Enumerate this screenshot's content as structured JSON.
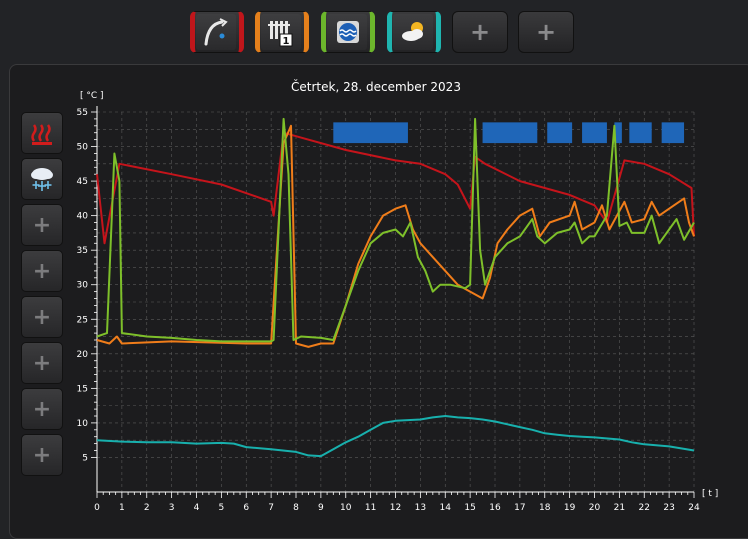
{
  "toolbar": {
    "buttons": [
      {
        "id": "water-tap",
        "icon": "water-tap-icon",
        "accent": "#c0161b"
      },
      {
        "id": "heating-circuit-1",
        "icon": "radiator-1-icon",
        "accent": "#e5801c"
      },
      {
        "id": "pool",
        "icon": "pool-water-icon",
        "accent": "#6cb62c"
      },
      {
        "id": "weather",
        "icon": "sun-cloud-icon",
        "accent": "#1fb5b0"
      },
      {
        "id": "add-1",
        "icon": "plus-icon",
        "label": "+"
      },
      {
        "id": "add-2",
        "icon": "plus-icon",
        "label": "+"
      }
    ]
  },
  "side_buttons": [
    {
      "id": "heating-mode",
      "icon": "heat-waves-icon"
    },
    {
      "id": "cooling-mode",
      "icon": "snowflake-icon"
    },
    {
      "id": "add-1",
      "icon": "plus-icon",
      "label": "+"
    },
    {
      "id": "add-2",
      "icon": "plus-icon",
      "label": "+"
    },
    {
      "id": "add-3",
      "icon": "plus-icon",
      "label": "+"
    },
    {
      "id": "add-4",
      "icon": "plus-icon",
      "label": "+"
    },
    {
      "id": "add-5",
      "icon": "plus-icon",
      "label": "+"
    },
    {
      "id": "add-6",
      "icon": "plus-icon",
      "label": "+"
    }
  ],
  "chart_data": {
    "type": "line",
    "title": "Četrtek, 28. december 2023",
    "ylabel": "[ °C ]",
    "xlabel": "[ t ]",
    "xlim": [
      0,
      24
    ],
    "ylim": [
      5,
      55
    ],
    "x_ticks": [
      0,
      1,
      2,
      3,
      4,
      5,
      6,
      7,
      8,
      9,
      10,
      11,
      12,
      13,
      14,
      15,
      16,
      17,
      18,
      19,
      20,
      21,
      22,
      23,
      24
    ],
    "y_ticks": [
      5,
      10,
      15,
      20,
      25,
      30,
      35,
      40,
      45,
      50,
      55
    ],
    "grid": true,
    "series": [
      {
        "color": "#c5141b",
        "points": [
          [
            0,
            46
          ],
          [
            0.3,
            36
          ],
          [
            0.9,
            47.5
          ],
          [
            3,
            46
          ],
          [
            5,
            44.5
          ],
          [
            7,
            42
          ],
          [
            7.1,
            40
          ],
          [
            7.5,
            52
          ],
          [
            8,
            51.5
          ],
          [
            10,
            49.5
          ],
          [
            12,
            48
          ],
          [
            13,
            47.5
          ],
          [
            14,
            46
          ],
          [
            14.5,
            44.5
          ],
          [
            15,
            41
          ],
          [
            15.2,
            48.5
          ],
          [
            15.6,
            47.5
          ],
          [
            17,
            45
          ],
          [
            18,
            44
          ],
          [
            19,
            43
          ],
          [
            20,
            41.5
          ],
          [
            20.5,
            39
          ],
          [
            21.2,
            48
          ],
          [
            22,
            47.5
          ],
          [
            23,
            46
          ],
          [
            23.9,
            44
          ],
          [
            24,
            37
          ]
        ]
      },
      {
        "color": "#f07d1a",
        "points": [
          [
            0,
            22
          ],
          [
            0.5,
            21.5
          ],
          [
            0.8,
            22.5
          ],
          [
            1,
            21.5
          ],
          [
            3,
            21.8
          ],
          [
            6,
            21.5
          ],
          [
            7,
            21.5
          ],
          [
            7.5,
            50.5
          ],
          [
            7.8,
            53
          ],
          [
            8,
            21.5
          ],
          [
            8.5,
            21
          ],
          [
            9,
            21.5
          ],
          [
            9.5,
            21.5
          ],
          [
            10,
            27
          ],
          [
            10.5,
            33
          ],
          [
            11,
            37
          ],
          [
            11.5,
            40
          ],
          [
            12,
            41
          ],
          [
            12.4,
            41.5
          ],
          [
            12.7,
            38
          ],
          [
            13,
            36
          ],
          [
            13.5,
            34
          ],
          [
            14,
            32
          ],
          [
            14.5,
            30
          ],
          [
            15,
            29
          ],
          [
            15.5,
            28
          ],
          [
            15.8,
            31
          ],
          [
            16.1,
            36
          ],
          [
            16.5,
            38
          ],
          [
            17,
            40
          ],
          [
            17.5,
            41
          ],
          [
            17.8,
            37
          ],
          [
            18.2,
            39
          ],
          [
            19,
            40
          ],
          [
            19.2,
            42
          ],
          [
            19.5,
            38
          ],
          [
            20,
            39
          ],
          [
            20.3,
            41.5
          ],
          [
            20.6,
            38
          ],
          [
            21.2,
            42
          ],
          [
            21.5,
            39
          ],
          [
            22,
            39.5
          ],
          [
            22.3,
            42
          ],
          [
            22.6,
            40
          ],
          [
            23,
            41
          ],
          [
            23.6,
            42.5
          ],
          [
            23.8,
            39
          ],
          [
            24,
            37
          ]
        ]
      },
      {
        "color": "#7ec02a",
        "points": [
          [
            0,
            22.5
          ],
          [
            0.4,
            23
          ],
          [
            0.7,
            49
          ],
          [
            0.9,
            45
          ],
          [
            1,
            23
          ],
          [
            2,
            22.5
          ],
          [
            3,
            22.3
          ],
          [
            4,
            22
          ],
          [
            5,
            21.8
          ],
          [
            6,
            21.8
          ],
          [
            7,
            21.8
          ],
          [
            7.1,
            22
          ],
          [
            7.5,
            54
          ],
          [
            7.7,
            46
          ],
          [
            7.9,
            22
          ],
          [
            8.2,
            22.5
          ],
          [
            9,
            22.3
          ],
          [
            9.5,
            22
          ],
          [
            10,
            27
          ],
          [
            10.5,
            32
          ],
          [
            11,
            36
          ],
          [
            11.5,
            37.5
          ],
          [
            12,
            38
          ],
          [
            12.3,
            37
          ],
          [
            12.6,
            39
          ],
          [
            12.9,
            34
          ],
          [
            13.2,
            32
          ],
          [
            13.5,
            29
          ],
          [
            13.8,
            30
          ],
          [
            14.2,
            30
          ],
          [
            14.8,
            29.5
          ],
          [
            15,
            30
          ],
          [
            15.2,
            54
          ],
          [
            15.4,
            35
          ],
          [
            15.6,
            30
          ],
          [
            16,
            34
          ],
          [
            16.5,
            36
          ],
          [
            17,
            37
          ],
          [
            17.5,
            39.5
          ],
          [
            17.7,
            37
          ],
          [
            18,
            36
          ],
          [
            18.5,
            37.5
          ],
          [
            19,
            38
          ],
          [
            19.2,
            39
          ],
          [
            19.5,
            36
          ],
          [
            19.8,
            37
          ],
          [
            20,
            37
          ],
          [
            20.5,
            40
          ],
          [
            20.8,
            53
          ],
          [
            21,
            38.5
          ],
          [
            21.3,
            39
          ],
          [
            21.5,
            37.5
          ],
          [
            22,
            37.5
          ],
          [
            22.3,
            40
          ],
          [
            22.6,
            36
          ],
          [
            23,
            38
          ],
          [
            23.3,
            39.5
          ],
          [
            23.6,
            36.5
          ],
          [
            24,
            39
          ]
        ]
      },
      {
        "color": "#18b0ad",
        "points": [
          [
            0,
            7.5
          ],
          [
            1,
            7.3
          ],
          [
            2,
            7.2
          ],
          [
            3,
            7.2
          ],
          [
            4,
            7.0
          ],
          [
            5,
            7.1
          ],
          [
            5.5,
            7.0
          ],
          [
            6,
            6.5
          ],
          [
            7,
            6.2
          ],
          [
            8,
            5.8
          ],
          [
            8.5,
            5.3
          ],
          [
            9,
            5.2
          ],
          [
            9.5,
            6.2
          ],
          [
            10,
            7.2
          ],
          [
            10.5,
            8
          ],
          [
            11,
            9
          ],
          [
            11.5,
            10
          ],
          [
            12,
            10.3
          ],
          [
            12.5,
            10.4
          ],
          [
            13,
            10.5
          ],
          [
            13.5,
            10.8
          ],
          [
            14,
            11
          ],
          [
            14.5,
            10.8
          ],
          [
            15,
            10.7
          ],
          [
            15.5,
            10.5
          ],
          [
            16,
            10.2
          ],
          [
            16.5,
            9.8
          ],
          [
            17,
            9.4
          ],
          [
            17.5,
            9.0
          ],
          [
            18,
            8.5
          ],
          [
            18.5,
            8.3
          ],
          [
            19,
            8.1
          ],
          [
            19.5,
            8.0
          ],
          [
            20,
            7.9
          ],
          [
            21,
            7.6
          ],
          [
            21.5,
            7.2
          ],
          [
            22,
            6.9
          ],
          [
            23,
            6.6
          ],
          [
            24,
            6.0
          ]
        ]
      }
    ],
    "bars": {
      "color": "#1f66b8",
      "level": 52,
      "segments": [
        [
          9.5,
          12.5
        ],
        [
          15.5,
          17.7
        ],
        [
          18.1,
          19.1
        ],
        [
          19.5,
          20.5
        ],
        [
          20.8,
          21.1
        ],
        [
          21.4,
          22.3
        ],
        [
          22.7,
          23.6
        ]
      ]
    }
  }
}
